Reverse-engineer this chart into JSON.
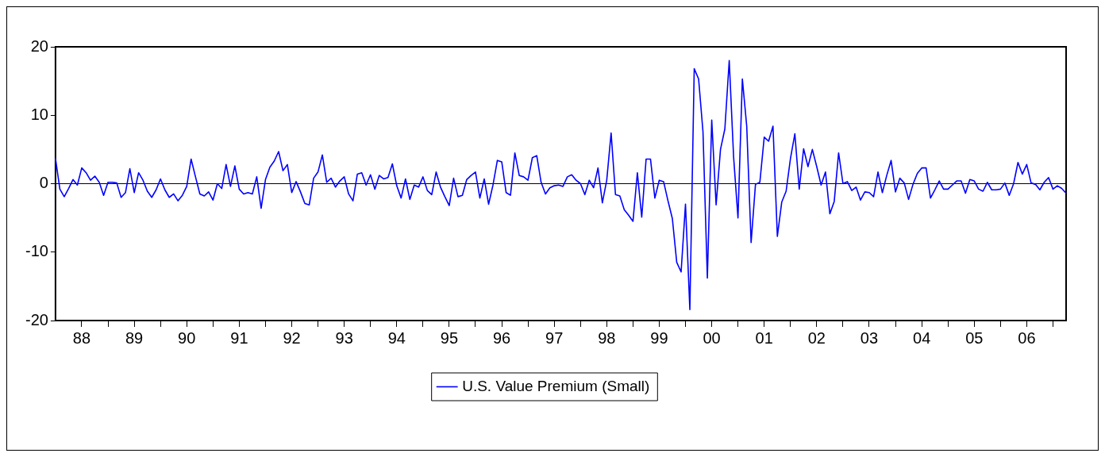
{
  "chart_data": {
    "type": "line",
    "x": [
      "1988-01",
      "1988-02",
      "1988-03",
      "1988-04",
      "1988-05",
      "1988-06",
      "1988-07",
      "1988-08",
      "1988-09",
      "1988-10",
      "1988-11",
      "1988-12",
      "1989-01",
      "1989-02",
      "1989-03",
      "1989-04",
      "1989-05",
      "1989-06",
      "1989-07",
      "1989-08",
      "1989-09",
      "1989-10",
      "1989-11",
      "1989-12",
      "1990-01",
      "1990-02",
      "1990-03",
      "1990-04",
      "1990-05",
      "1990-06",
      "1990-07",
      "1990-08",
      "1990-09",
      "1990-10",
      "1990-11",
      "1990-12",
      "1991-01",
      "1991-02",
      "1991-03",
      "1991-04",
      "1991-05",
      "1991-06",
      "1991-07",
      "1991-08",
      "1991-09",
      "1991-10",
      "1991-11",
      "1991-12",
      "1992-01",
      "1992-02",
      "1992-03",
      "1992-04",
      "1992-05",
      "1992-06",
      "1992-07",
      "1992-08",
      "1992-09",
      "1992-10",
      "1992-11",
      "1992-12",
      "1993-01",
      "1993-02",
      "1993-03",
      "1993-04",
      "1993-05",
      "1993-06",
      "1993-07",
      "1993-08",
      "1993-09",
      "1993-10",
      "1993-11",
      "1993-12",
      "1994-01",
      "1994-02",
      "1994-03",
      "1994-04",
      "1994-05",
      "1994-06",
      "1994-07",
      "1994-08",
      "1994-09",
      "1994-10",
      "1994-11",
      "1994-12",
      "1995-01",
      "1995-02",
      "1995-03",
      "1995-04",
      "1995-05",
      "1995-06",
      "1995-07",
      "1995-08",
      "1995-09",
      "1995-10",
      "1995-11",
      "1995-12",
      "1996-01",
      "1996-02",
      "1996-03",
      "1996-04",
      "1996-05",
      "1996-06",
      "1996-07",
      "1996-08",
      "1996-09",
      "1996-10",
      "1996-11",
      "1996-12",
      "1997-01",
      "1997-02",
      "1997-03",
      "1997-04",
      "1997-05",
      "1997-06",
      "1997-07",
      "1997-08",
      "1997-09",
      "1997-10",
      "1997-11",
      "1997-12",
      "1998-01",
      "1998-02",
      "1998-03",
      "1998-04",
      "1998-05",
      "1998-06",
      "1998-07",
      "1998-08",
      "1998-09",
      "1998-10",
      "1998-11",
      "1998-12",
      "1999-01",
      "1999-02",
      "1999-03",
      "1999-04",
      "1999-05",
      "1999-06",
      "1999-07",
      "1999-08",
      "1999-09",
      "1999-10",
      "1999-11",
      "1999-12",
      "2000-01",
      "2000-02",
      "2000-03",
      "2000-04",
      "2000-05",
      "2000-06",
      "2000-07",
      "2000-08",
      "2000-09",
      "2000-10",
      "2000-11",
      "2000-12",
      "2001-01",
      "2001-02",
      "2001-03",
      "2001-04",
      "2001-05",
      "2001-06",
      "2001-07",
      "2001-08",
      "2001-09",
      "2001-10",
      "2001-11",
      "2001-12",
      "2002-01",
      "2002-02",
      "2002-03",
      "2002-04",
      "2002-05",
      "2002-06",
      "2002-07",
      "2002-08",
      "2002-09",
      "2002-10",
      "2002-11",
      "2002-12",
      "2003-01",
      "2003-02",
      "2003-03",
      "2003-04",
      "2003-05",
      "2003-06",
      "2003-07",
      "2003-08",
      "2003-09",
      "2003-10",
      "2003-11",
      "2003-12",
      "2004-01",
      "2004-02",
      "2004-03",
      "2004-04",
      "2004-05",
      "2004-06",
      "2004-07",
      "2004-08",
      "2004-09",
      "2004-10",
      "2004-11",
      "2004-12",
      "2005-01",
      "2005-02",
      "2005-03",
      "2005-04",
      "2005-05",
      "2005-06",
      "2005-07",
      "2005-08",
      "2005-09",
      "2005-10",
      "2005-11",
      "2005-12",
      "2006-01",
      "2006-02",
      "2006-03",
      "2006-04",
      "2006-05",
      "2006-06",
      "2006-07",
      "2006-08",
      "2006-09",
      "2006-10",
      "2006-11",
      "2006-12",
      "2007-01",
      "2007-02",
      "2007-03",
      "2007-04"
    ],
    "series": [
      {
        "name": "U.S. Value Premium (Small)",
        "color": "#0000ff",
        "values": [
          3.7,
          -0.8,
          -1.9,
          -0.7,
          0.6,
          -0.2,
          2.3,
          1.6,
          0.5,
          1.1,
          0.2,
          -1.7,
          0.2,
          0.2,
          0.1,
          -2.0,
          -1.3,
          2.2,
          -1.3,
          1.6,
          0.5,
          -1.1,
          -2.0,
          -0.9,
          0.7,
          -0.9,
          -2.0,
          -1.5,
          -2.5,
          -1.7,
          -0.4,
          3.6,
          1.0,
          -1.5,
          -1.8,
          -1.2,
          -2.4,
          0.0,
          -0.7,
          2.8,
          -0.4,
          2.6,
          -0.8,
          -1.5,
          -1.3,
          -1.5,
          1.0,
          -3.6,
          0.6,
          2.4,
          3.3,
          4.7,
          1.9,
          2.8,
          -1.3,
          0.3,
          -1.2,
          -2.9,
          -3.1,
          0.8,
          1.7,
          4.2,
          0.2,
          0.8,
          -0.5,
          0.4,
          1.0,
          -1.5,
          -2.5,
          1.4,
          1.6,
          -0.2,
          1.3,
          -0.8,
          1.2,
          0.7,
          0.9,
          2.9,
          -0.3,
          -2.1,
          0.7,
          -2.3,
          -0.2,
          -0.5,
          1.0,
          -1.0,
          -1.6,
          1.7,
          -0.5,
          -1.9,
          -3.2,
          0.8,
          -1.9,
          -1.7,
          0.6,
          1.2,
          1.7,
          -2.1,
          0.7,
          -3.0,
          -0.2,
          3.4,
          3.2,
          -1.3,
          -1.7,
          4.5,
          1.2,
          1.0,
          0.5,
          3.8,
          4.1,
          0.2,
          -1.5,
          -0.6,
          -0.3,
          -0.2,
          -0.4,
          1.0,
          1.3,
          0.5,
          0.0,
          -1.6,
          0.5,
          -0.6,
          2.3,
          -2.8,
          0.5,
          7.4,
          -1.6,
          -1.8,
          -3.8,
          -4.6,
          -5.5,
          1.6,
          -4.9,
          3.6,
          3.6,
          -2.1,
          0.5,
          0.3,
          -2.5,
          -5.1,
          -11.5,
          -12.9,
          -3.0,
          -18.4,
          16.8,
          15.3,
          7.6,
          -13.8,
          9.3,
          -3.1,
          5.0,
          8.0,
          18.0,
          3.9,
          -5.0,
          15.3,
          8.4,
          -8.6,
          -0.1,
          0.2,
          6.8,
          6.2,
          8.4,
          -7.7,
          -2.7,
          -1.1,
          3.7,
          7.3,
          -0.8,
          5.1,
          2.5,
          5.0,
          2.5,
          -0.2,
          1.7,
          -4.4,
          -2.6,
          4.5,
          0.0,
          0.3,
          -1.0,
          -0.5,
          -2.4,
          -1.2,
          -1.3,
          -1.9,
          1.7,
          -1.3,
          1.2,
          3.4,
          -1.2,
          0.8,
          0.1,
          -2.3,
          -0.1,
          1.5,
          2.3,
          2.3,
          -2.1,
          -0.9,
          0.4,
          -0.8,
          -0.8,
          -0.2,
          0.4,
          0.4,
          -1.4,
          0.6,
          0.4,
          -0.8,
          -1.1,
          0.2,
          -0.9,
          -0.9,
          -0.8,
          0.1,
          -1.7,
          0.0,
          3.1,
          1.4,
          2.8,
          0.1,
          -0.1,
          -0.9,
          0.2,
          0.9,
          -0.8,
          -0.3,
          -0.7,
          -1.4
        ]
      }
    ],
    "xlim": [
      "1988-01",
      "2007-04"
    ],
    "xticks": [
      {
        "value": "1988-07",
        "label": "88"
      },
      {
        "value": "1989-01",
        "label": null
      },
      {
        "value": "1989-07",
        "label": "89"
      },
      {
        "value": "1990-01",
        "label": null
      },
      {
        "value": "1990-07",
        "label": "90"
      },
      {
        "value": "1991-01",
        "label": null
      },
      {
        "value": "1991-07",
        "label": "91"
      },
      {
        "value": "1992-01",
        "label": null
      },
      {
        "value": "1992-07",
        "label": "92"
      },
      {
        "value": "1993-01",
        "label": null
      },
      {
        "value": "1993-07",
        "label": "93"
      },
      {
        "value": "1994-01",
        "label": null
      },
      {
        "value": "1994-07",
        "label": "94"
      },
      {
        "value": "1995-01",
        "label": null
      },
      {
        "value": "1995-07",
        "label": "95"
      },
      {
        "value": "1996-01",
        "label": null
      },
      {
        "value": "1996-07",
        "label": "96"
      },
      {
        "value": "1997-01",
        "label": null
      },
      {
        "value": "1997-07",
        "label": "97"
      },
      {
        "value": "1998-01",
        "label": null
      },
      {
        "value": "1998-07",
        "label": "98"
      },
      {
        "value": "1999-01",
        "label": null
      },
      {
        "value": "1999-07",
        "label": "99"
      },
      {
        "value": "2000-01",
        "label": null
      },
      {
        "value": "2000-07",
        "label": "00"
      },
      {
        "value": "2001-01",
        "label": null
      },
      {
        "value": "2001-07",
        "label": "01"
      },
      {
        "value": "2002-01",
        "label": null
      },
      {
        "value": "2002-07",
        "label": "02"
      },
      {
        "value": "2003-01",
        "label": null
      },
      {
        "value": "2003-07",
        "label": "03"
      },
      {
        "value": "2004-01",
        "label": null
      },
      {
        "value": "2004-07",
        "label": "04"
      },
      {
        "value": "2005-01",
        "label": null
      },
      {
        "value": "2005-07",
        "label": "05"
      },
      {
        "value": "2006-01",
        "label": null
      },
      {
        "value": "2006-07",
        "label": "06"
      },
      {
        "value": "2007-01",
        "label": null
      }
    ],
    "ylim": [
      -20,
      20
    ],
    "yticks": [
      -20,
      -10,
      0,
      10,
      20
    ],
    "ref_lines": [
      {
        "axis": "y",
        "value": 0,
        "color": "#000000"
      }
    ],
    "legend": "bottom",
    "grid": false,
    "marker": "none",
    "line_style": "solid"
  }
}
